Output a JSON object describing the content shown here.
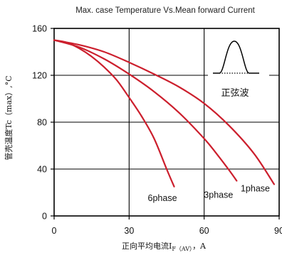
{
  "chart_data": {
    "type": "line",
    "title": "Max. case Temperature Vs.Mean forward Current",
    "xlabel": {
      "main": "正向平均电流I",
      "sub": "F（AV）",
      "tail": "，A"
    },
    "ylabel": "管壳温度Tc（max）,°C",
    "xlim": [
      0,
      90
    ],
    "ylim": [
      0,
      160
    ],
    "x_ticks": [
      "0",
      "30",
      "60",
      "90"
    ],
    "y_ticks": [
      "0",
      "40",
      "80",
      "120",
      "160"
    ],
    "grid": true,
    "series_color": "#cc1f2d",
    "series": [
      {
        "name": "6phase",
        "x": [
          0,
          5,
          10,
          15,
          20,
          25,
          30,
          35,
          40,
          45,
          48
        ],
        "y": [
          150,
          148,
          143,
          136,
          127,
          116,
          101,
          85,
          66,
          40,
          25
        ]
      },
      {
        "name": "3phase",
        "x": [
          0,
          10,
          20,
          30,
          40,
          50,
          60,
          65,
          70,
          73
        ],
        "y": [
          150,
          144,
          134,
          121,
          106,
          88,
          66,
          53,
          39,
          30
        ]
      },
      {
        "name": "1phase",
        "x": [
          0,
          10,
          20,
          30,
          40,
          50,
          60,
          70,
          80,
          88
        ],
        "y": [
          150,
          146,
          140,
          131,
          121,
          110,
          96,
          77,
          53,
          27
        ]
      }
    ],
    "inset": {
      "label": "正弦波",
      "description_icon": "sine-half-wave-icon"
    }
  }
}
